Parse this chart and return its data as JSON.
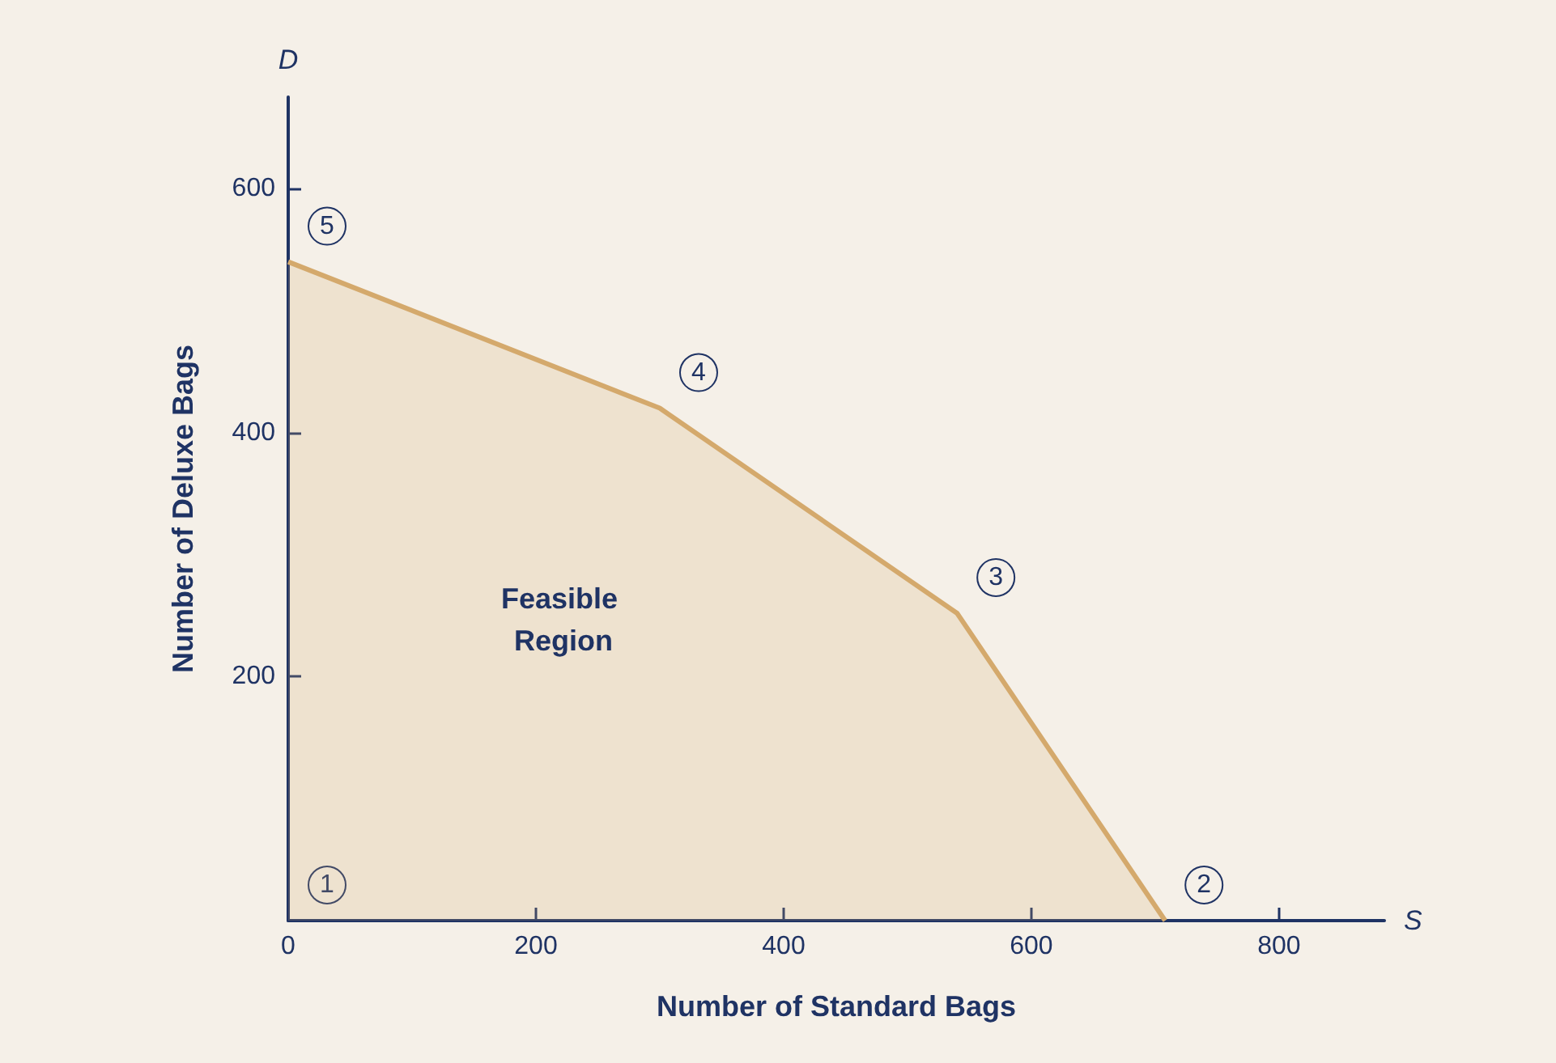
{
  "chart_data": {
    "type": "area",
    "xlabel": "Number of Standard Bags",
    "ylabel": "Number of Deluxe Bags",
    "x": [
      0,
      300,
      540,
      708
    ],
    "series": [
      {
        "color": "#d4a96c",
        "values": [
          540,
          420,
          252,
          0
        ]
      }
    ],
    "xlim": [
      0,
      885
    ],
    "ylim": [
      0,
      675
    ],
    "xticks": [
      0,
      200,
      400,
      600,
      800
    ],
    "yticks": [
      200,
      400,
      600
    ],
    "grid": false,
    "marker": "none",
    "line_style": "solid",
    "annotations": [
      {
        "text": "1",
        "x": 0,
        "y": 0
      },
      {
        "text": "2",
        "x": 708,
        "y": 0
      },
      {
        "text": "3",
        "x": 540,
        "y": 252
      },
      {
        "text": "4",
        "x": 300,
        "y": 420
      },
      {
        "text": "5",
        "x": 0,
        "y": 540
      },
      "D",
      "S",
      "Feasible Region"
    ]
  }
}
